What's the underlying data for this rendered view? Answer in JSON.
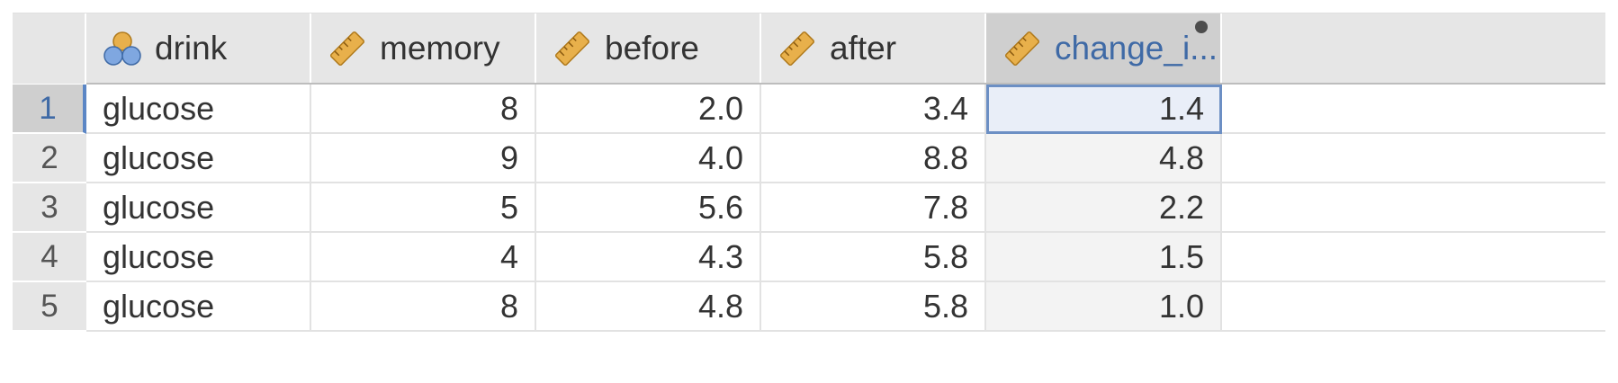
{
  "columns": [
    {
      "name": "drink",
      "type_icon": "nominal-icon"
    },
    {
      "name": "memory",
      "type_icon": "ruler-icon"
    },
    {
      "name": "before",
      "type_icon": "ruler-icon"
    },
    {
      "name": "after",
      "type_icon": "ruler-icon"
    },
    {
      "name": "change_i...",
      "type_icon": "ruler-icon"
    }
  ],
  "rows": [
    {
      "num": "1",
      "drink": "glucose",
      "memory": "8",
      "before": "2.0",
      "after": "3.4",
      "change": "1.4"
    },
    {
      "num": "2",
      "drink": "glucose",
      "memory": "9",
      "before": "4.0",
      "after": "8.8",
      "change": "4.8"
    },
    {
      "num": "3",
      "drink": "glucose",
      "memory": "5",
      "before": "5.6",
      "after": "7.8",
      "change": "2.2"
    },
    {
      "num": "4",
      "drink": "glucose",
      "memory": "4",
      "before": "4.3",
      "after": "5.8",
      "change": "1.5"
    },
    {
      "num": "5",
      "drink": "glucose",
      "memory": "8",
      "before": "4.8",
      "after": "5.8",
      "change": "1.0"
    }
  ],
  "colors": {
    "header_bg": "#e6e6e6",
    "selected_header_bg": "#cfcfcf",
    "selected_text": "#3f6aa6",
    "selection_border": "#6c8fc4",
    "icon_fill": "#e8b04b"
  }
}
